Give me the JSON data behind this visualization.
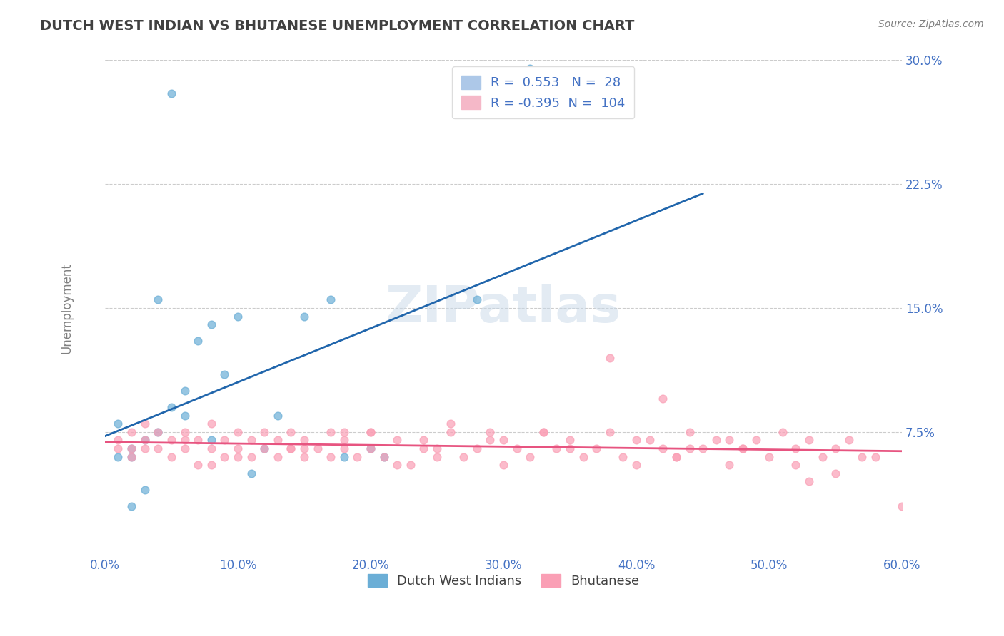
{
  "title": "DUTCH WEST INDIAN VS BHUTANESE UNEMPLOYMENT CORRELATION CHART",
  "source": "Source: ZipAtlas.com",
  "xlabel": "",
  "ylabel": "Unemployment",
  "xlim": [
    0.0,
    0.6
  ],
  "ylim": [
    0.0,
    0.3
  ],
  "xticks": [
    0.0,
    0.1,
    0.2,
    0.3,
    0.4,
    0.5,
    0.6
  ],
  "xticklabels": [
    "0.0%",
    "10.0%",
    "20.0%",
    "30.0%",
    "40.0%",
    "50.0%",
    "60.0%"
  ],
  "yticks": [
    0.075,
    0.15,
    0.225,
    0.3
  ],
  "yticklabels": [
    "7.5%",
    "15.0%",
    "22.5%",
    "30.0%"
  ],
  "blue_color": "#6baed6",
  "pink_color": "#fa9fb5",
  "blue_line_color": "#2166ac",
  "pink_line_color": "#e75480",
  "blue_R": 0.553,
  "blue_N": 28,
  "pink_R": -0.395,
  "pink_N": 104,
  "legend_label_blue": "Dutch West Indians",
  "legend_label_pink": "Bhutanese",
  "watermark": "ZIPatlas",
  "background_color": "#ffffff",
  "grid_color": "#cccccc",
  "title_color": "#404040",
  "legend_text_color": "#4472c4",
  "blue_scatter_x": [
    0.02,
    0.03,
    0.01,
    0.01,
    0.04,
    0.02,
    0.05,
    0.06,
    0.06,
    0.07,
    0.08,
    0.09,
    0.05,
    0.1,
    0.12,
    0.13,
    0.15,
    0.17,
    0.04,
    0.02,
    0.03,
    0.11,
    0.08,
    0.18,
    0.21,
    0.2,
    0.28,
    0.32
  ],
  "blue_scatter_y": [
    0.065,
    0.07,
    0.06,
    0.08,
    0.075,
    0.06,
    0.09,
    0.1,
    0.085,
    0.13,
    0.14,
    0.11,
    0.28,
    0.145,
    0.065,
    0.085,
    0.145,
    0.155,
    0.155,
    0.03,
    0.04,
    0.05,
    0.07,
    0.06,
    0.06,
    0.065,
    0.155,
    0.295
  ],
  "pink_scatter_x": [
    0.01,
    0.01,
    0.02,
    0.02,
    0.03,
    0.03,
    0.03,
    0.04,
    0.04,
    0.05,
    0.05,
    0.06,
    0.06,
    0.07,
    0.07,
    0.08,
    0.08,
    0.09,
    0.09,
    0.1,
    0.1,
    0.11,
    0.11,
    0.12,
    0.12,
    0.13,
    0.13,
    0.14,
    0.14,
    0.15,
    0.15,
    0.16,
    0.17,
    0.17,
    0.18,
    0.18,
    0.19,
    0.2,
    0.2,
    0.21,
    0.22,
    0.23,
    0.24,
    0.24,
    0.25,
    0.26,
    0.27,
    0.28,
    0.29,
    0.3,
    0.31,
    0.32,
    0.33,
    0.34,
    0.35,
    0.36,
    0.37,
    0.38,
    0.39,
    0.4,
    0.41,
    0.42,
    0.43,
    0.44,
    0.45,
    0.46,
    0.47,
    0.48,
    0.49,
    0.5,
    0.51,
    0.52,
    0.53,
    0.54,
    0.55,
    0.56,
    0.38,
    0.42,
    0.48,
    0.52,
    0.57,
    0.53,
    0.47,
    0.35,
    0.29,
    0.44,
    0.4,
    0.26,
    0.22,
    0.18,
    0.14,
    0.1,
    0.06,
    0.02,
    0.33,
    0.58,
    0.3,
    0.25,
    0.2,
    0.15,
    0.43,
    0.08,
    0.6,
    0.55
  ],
  "pink_scatter_y": [
    0.065,
    0.07,
    0.075,
    0.06,
    0.065,
    0.08,
    0.07,
    0.075,
    0.065,
    0.07,
    0.06,
    0.075,
    0.065,
    0.07,
    0.055,
    0.065,
    0.08,
    0.07,
    0.06,
    0.075,
    0.065,
    0.07,
    0.06,
    0.065,
    0.075,
    0.06,
    0.07,
    0.065,
    0.075,
    0.06,
    0.07,
    0.065,
    0.075,
    0.06,
    0.065,
    0.07,
    0.06,
    0.065,
    0.075,
    0.06,
    0.07,
    0.055,
    0.065,
    0.07,
    0.06,
    0.075,
    0.06,
    0.065,
    0.07,
    0.055,
    0.065,
    0.06,
    0.075,
    0.065,
    0.07,
    0.06,
    0.065,
    0.075,
    0.06,
    0.055,
    0.07,
    0.065,
    0.06,
    0.075,
    0.065,
    0.07,
    0.055,
    0.065,
    0.07,
    0.06,
    0.075,
    0.065,
    0.07,
    0.06,
    0.065,
    0.07,
    0.12,
    0.095,
    0.065,
    0.055,
    0.06,
    0.045,
    0.07,
    0.065,
    0.075,
    0.065,
    0.07,
    0.08,
    0.055,
    0.075,
    0.065,
    0.06,
    0.07,
    0.065,
    0.075,
    0.06,
    0.07,
    0.065,
    0.075,
    0.065,
    0.06,
    0.055,
    0.03,
    0.05
  ]
}
